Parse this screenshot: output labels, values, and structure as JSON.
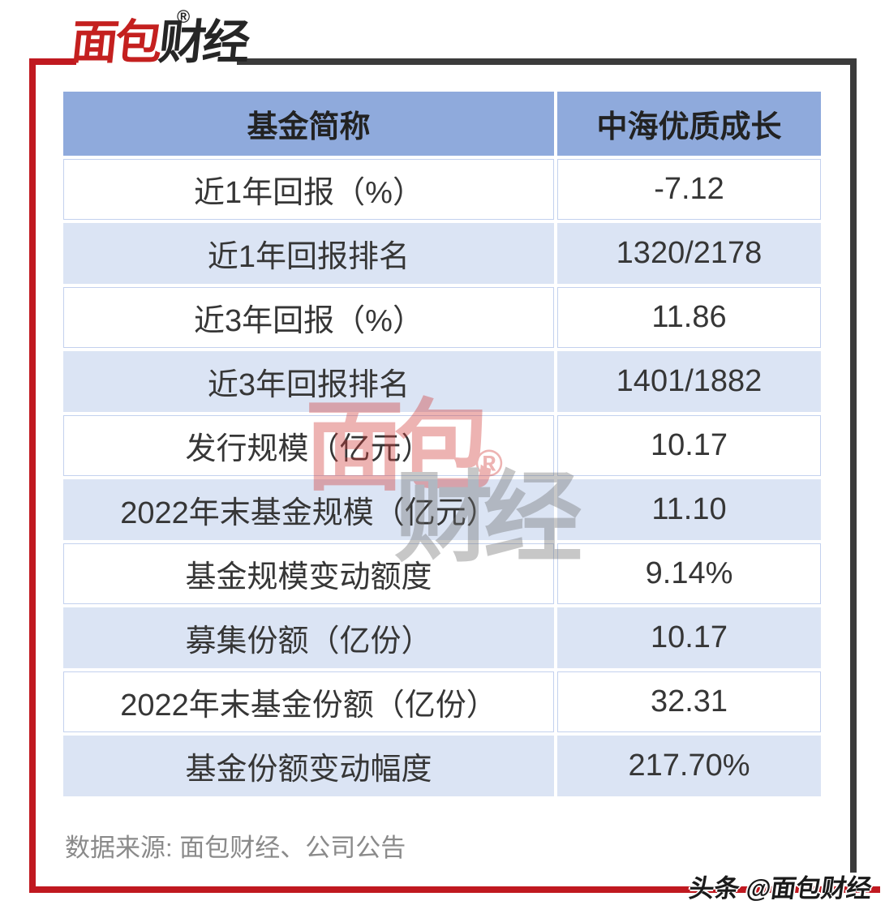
{
  "brand": {
    "logo_first": "面包",
    "logo_second": "财经",
    "registered_mark": "®",
    "credit": "头条 @面包财经"
  },
  "chart_data": {
    "type": "table",
    "title": "中海优质成长基金数据表",
    "columns": [
      "基金简称",
      "中海优质成长"
    ],
    "rows": [
      [
        "近1年回报（%）",
        "-7.12"
      ],
      [
        "近1年回报排名",
        "1320/2178"
      ],
      [
        "近3年回报（%）",
        "11.86"
      ],
      [
        "近3年回报排名",
        "1401/1882"
      ],
      [
        "发行规模（亿元）",
        "10.17"
      ],
      [
        "2022年末基金规模（亿元）",
        "11.10"
      ],
      [
        "基金规模变动额度",
        "9.14%"
      ],
      [
        "募集份额（亿份）",
        "10.17"
      ],
      [
        "2022年末基金份额（亿份）",
        "32.31"
      ],
      [
        "基金份额变动幅度",
        "217.70%"
      ]
    ],
    "layout": {
      "banding": "alternate-light-blue",
      "grid": "thin-light-borders-on-white-rows"
    }
  },
  "footer": {
    "source": "数据来源: 面包财经、公司公告"
  },
  "colors": {
    "frame_red": "#c01920",
    "frame_dark": "#3b3b3b",
    "header_bg": "#8faadc",
    "band_bg": "#dbe4f4",
    "logo_red": "#c4201f",
    "text_dark": "#363636",
    "source_gray": "#8a8a8a"
  }
}
